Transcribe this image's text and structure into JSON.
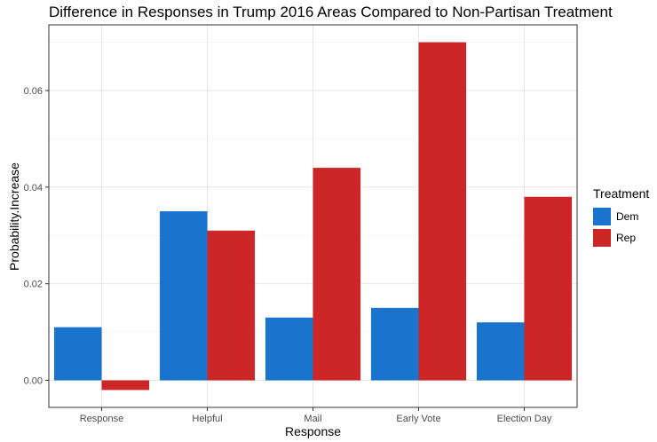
{
  "chart_data": {
    "type": "bar",
    "title": "Difference in Responses in Trump 2016 Areas Compared to Non-Partisan Treatment",
    "xlabel": "Response",
    "ylabel": "Probability.Increase",
    "categories": [
      "Response",
      "Helpful",
      "Mail",
      "Early Vote",
      "Election Day"
    ],
    "series": [
      {
        "name": "Dem",
        "color": "#1874CD",
        "values": [
          0.011,
          0.035,
          0.013,
          0.015,
          0.012
        ]
      },
      {
        "name": "Rep",
        "color": "#CD2626",
        "values": [
          -0.002,
          0.031,
          0.044,
          0.07,
          0.038
        ]
      }
    ],
    "ylim": [
      -0.0056,
      0.0736
    ],
    "yticks": [
      0.0,
      0.02,
      0.04,
      0.06
    ],
    "ytick_labels": [
      "0.00",
      "0.02",
      "0.04",
      "0.06"
    ],
    "grid": true,
    "legend": {
      "title": "Treatment",
      "position": "right"
    }
  }
}
